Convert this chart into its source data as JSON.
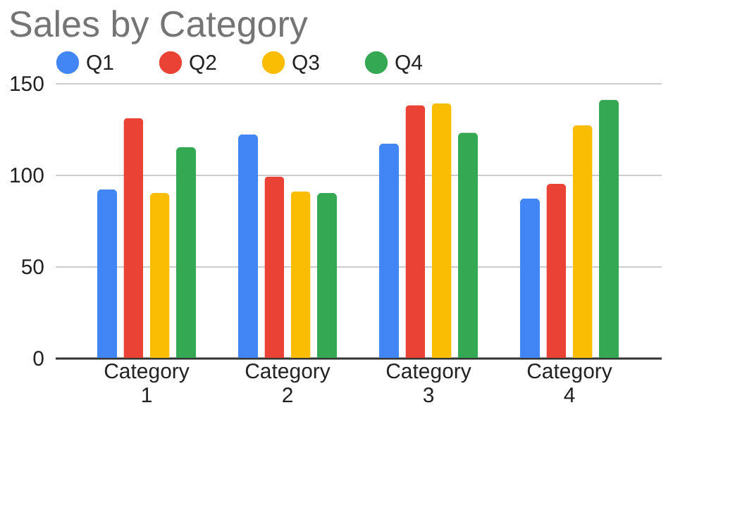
{
  "chart_data": {
    "type": "bar",
    "title": "Sales by Category",
    "categories": [
      "Category 1",
      "Category 2",
      "Category 3",
      "Category 4"
    ],
    "series": [
      {
        "name": "Q1",
        "color": "#4285f4",
        "values": [
          92,
          122,
          117,
          87
        ]
      },
      {
        "name": "Q2",
        "color": "#ea4335",
        "values": [
          131,
          99,
          138,
          95
        ]
      },
      {
        "name": "Q3",
        "color": "#fbbc04",
        "values": [
          90,
          91,
          139,
          127
        ]
      },
      {
        "name": "Q4",
        "color": "#34a853",
        "values": [
          115,
          90,
          123,
          141
        ]
      }
    ],
    "ylim": [
      0,
      150
    ],
    "yticks": [
      0,
      50,
      100,
      150
    ],
    "grid": "y",
    "legend": "top left"
  }
}
